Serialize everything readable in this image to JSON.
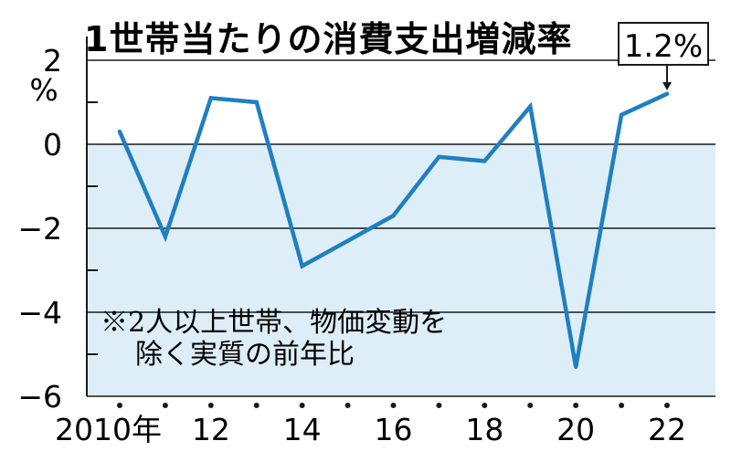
{
  "chart_data": {
    "type": "line",
    "title": "1世帯当たりの消費支出増減率",
    "unit_label": "%",
    "note_line1": "※2人以上世帯、物価変動を",
    "note_line2": "除く実質の前年比",
    "callout": "1.2%",
    "x": [
      2010,
      2011,
      2012,
      2013,
      2014,
      2015,
      2016,
      2017,
      2018,
      2019,
      2020,
      2021,
      2022
    ],
    "x_tick_labels": [
      "2010年",
      "12",
      "14",
      "16",
      "18",
      "20",
      "22"
    ],
    "x_tick_years": [
      2010,
      2012,
      2014,
      2016,
      2018,
      2020,
      2022
    ],
    "y_tick_labels": [
      "2",
      "0",
      "−2",
      "−4",
      "−6"
    ],
    "y_tick_values": [
      2,
      0,
      -2,
      -4,
      -6
    ],
    "series": [
      {
        "values": [
          0.3,
          -2.2,
          1.1,
          1.0,
          -2.9,
          -2.3,
          -1.7,
          -0.3,
          -0.4,
          0.9,
          -5.3,
          0.7,
          1.2
        ]
      }
    ],
    "ylim": [
      -6,
      2
    ],
    "grid": true,
    "colors": {
      "line": "#1f7fc0",
      "negative_fill": "#deeef8",
      "axis": "#1a1a1a"
    }
  }
}
